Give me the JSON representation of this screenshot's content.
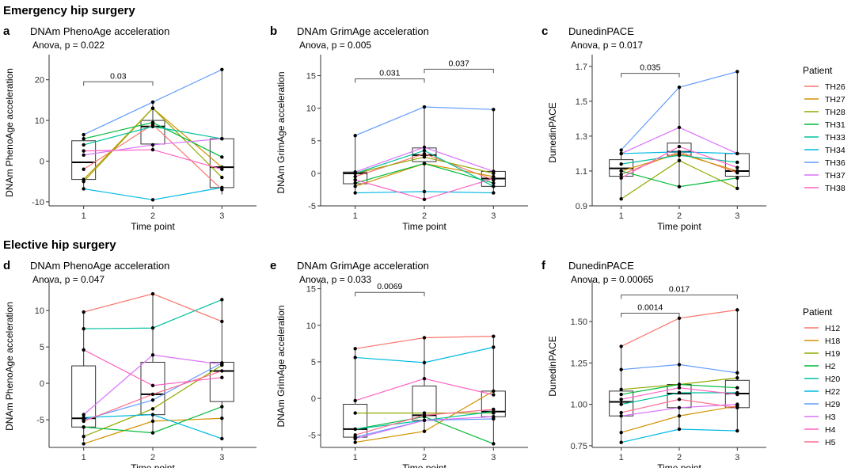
{
  "sections": {
    "emergency": "Emergency hip surgery",
    "elective": "Elective hip surgery"
  },
  "legends": [
    {
      "title": "Patient",
      "entries": [
        {
          "name": "TH26",
          "color": "#F8766D"
        },
        {
          "name": "TH27",
          "color": "#D39200"
        },
        {
          "name": "TH28",
          "color": "#93AA00"
        },
        {
          "name": "TH31",
          "color": "#00BA38"
        },
        {
          "name": "TH33",
          "color": "#00C19F"
        },
        {
          "name": "TH34",
          "color": "#00B9E3"
        },
        {
          "name": "TH36",
          "color": "#619CFF"
        },
        {
          "name": "TH37",
          "color": "#DB72FB"
        },
        {
          "name": "TH38",
          "color": "#FF61C3"
        }
      ]
    },
    {
      "title": "Patient",
      "entries": [
        {
          "name": "H12",
          "color": "#F8766D"
        },
        {
          "name": "H18",
          "color": "#D39200"
        },
        {
          "name": "H19",
          "color": "#93AA00"
        },
        {
          "name": "H2",
          "color": "#00BA38"
        },
        {
          "name": "H20",
          "color": "#00C19F"
        },
        {
          "name": "H22",
          "color": "#00B9E3"
        },
        {
          "name": "H29",
          "color": "#619CFF"
        },
        {
          "name": "H3",
          "color": "#DB72FB"
        },
        {
          "name": "H4",
          "color": "#FF61C3"
        },
        {
          "name": "H5",
          "color": "#FF6C91"
        }
      ]
    }
  ],
  "chart_data": [
    {
      "panel": "a",
      "type": "box",
      "title": "DNAm PhenoAge acceleration",
      "subtitle": "Anova, p = 0.022",
      "xlabel": "Time point",
      "ylabel": "DNAm PhenoAge acceleration",
      "categories": [
        "1",
        "2",
        "3"
      ],
      "ylim": [
        -11,
        25
      ],
      "yticks": [
        -10,
        0,
        10,
        20
      ],
      "ytick_labels": [
        "-10",
        "0",
        "10",
        "20"
      ],
      "boxes": [
        {
          "q1": -4.5,
          "median": -0.3,
          "q3": 5.0,
          "low": -6.8,
          "high": 6.5
        },
        {
          "q1": 4.2,
          "median": 8.5,
          "q3": 10.0,
          "low": 2.8,
          "high": 14.5
        },
        {
          "q1": -6.5,
          "median": -1.5,
          "q3": 5.5,
          "low": -8.2,
          "high": 22.5
        }
      ],
      "brackets": [
        {
          "from": 0,
          "to": 1,
          "y": 19.5,
          "label": "0.03"
        }
      ],
      "legend": 0,
      "series": [
        {
          "name": "TH26",
          "values": [
            -2.0,
            9.0,
            -7.0
          ]
        },
        {
          "name": "TH27",
          "values": [
            -4.5,
            13.0,
            -1.5
          ]
        },
        {
          "name": "TH28",
          "values": [
            -5.0,
            13.0,
            -4.0
          ]
        },
        {
          "name": "TH31",
          "values": [
            5.5,
            9.5,
            1.0
          ]
        },
        {
          "name": "TH33",
          "values": [
            4.0,
            8.5,
            5.5
          ]
        },
        {
          "name": "TH34",
          "values": [
            -6.8,
            -9.5,
            -6.5
          ]
        },
        {
          "name": "TH36",
          "values": [
            6.5,
            14.5,
            22.5
          ]
        },
        {
          "name": "TH37",
          "values": [
            1.5,
            4.0,
            5.5
          ]
        },
        {
          "name": "TH38",
          "values": [
            2.5,
            2.8,
            -2.0
          ]
        }
      ]
    },
    {
      "panel": "b",
      "type": "box",
      "title": "DNAm GrimAge acceleration",
      "subtitle": "Anova, p = 0.005",
      "xlabel": "Time point",
      "ylabel": "DNAm GrimAge acceleration",
      "categories": [
        "1",
        "2",
        "3"
      ],
      "ylim": [
        -5,
        17.5
      ],
      "yticks": [
        -5,
        0,
        5,
        10,
        15
      ],
      "ytick_labels": [
        "-5",
        "0",
        "5",
        "10",
        "15"
      ],
      "boxes": [
        {
          "q1": -1.6,
          "median": 0.0,
          "q3": 0.2,
          "low": -3.0,
          "high": 5.8
        },
        {
          "q1": 1.8,
          "median": 2.8,
          "q3": 3.9,
          "low": -4.0,
          "high": 10.2
        },
        {
          "q1": -2.0,
          "median": -0.8,
          "q3": 0.3,
          "low": -3.0,
          "high": 9.8
        }
      ],
      "brackets": [
        {
          "from": 0,
          "to": 1,
          "y": 14.5,
          "label": "0.031"
        },
        {
          "from": 1,
          "to": 2,
          "y": 16.0,
          "label": "0.037"
        }
      ],
      "legend": 0,
      "series": [
        {
          "name": "TH26",
          "values": [
            -0.5,
            3.0,
            -1.0
          ]
        },
        {
          "name": "TH27",
          "values": [
            -2.0,
            1.5,
            -0.5
          ]
        },
        {
          "name": "TH28",
          "values": [
            0.0,
            2.5,
            0.0
          ]
        },
        {
          "name": "TH31",
          "values": [
            -1.5,
            1.5,
            -1.5
          ]
        },
        {
          "name": "TH33",
          "values": [
            0.0,
            3.5,
            -2.0
          ]
        },
        {
          "name": "TH34",
          "values": [
            -3.0,
            -2.8,
            -3.0
          ]
        },
        {
          "name": "TH36",
          "values": [
            5.8,
            10.2,
            9.8
          ]
        },
        {
          "name": "TH37",
          "values": [
            0.2,
            4.0,
            0.3
          ]
        },
        {
          "name": "TH38",
          "values": [
            -1.0,
            -4.0,
            -0.8
          ]
        }
      ]
    },
    {
      "panel": "c",
      "type": "box",
      "title": "DunedinPACE",
      "subtitle": "Anova, p = 0.017",
      "xlabel": "Time point",
      "ylabel": "DunedinPACE",
      "categories": [
        "1",
        "2",
        "3"
      ],
      "ylim": [
        0.9,
        1.74
      ],
      "yticks": [
        0.9,
        1.1,
        1.3,
        1.5,
        1.7
      ],
      "ytick_labels": [
        "0.9",
        "1.1",
        "1.3",
        "1.5",
        "1.7"
      ],
      "boxes": [
        {
          "q1": 1.07,
          "median": 1.115,
          "q3": 1.165,
          "low": 0.94,
          "high": 1.22
        },
        {
          "q1": 1.19,
          "median": 1.21,
          "q3": 1.26,
          "low": 1.01,
          "high": 1.58
        },
        {
          "q1": 1.07,
          "median": 1.1,
          "q3": 1.2,
          "low": 1.0,
          "high": 1.67
        }
      ],
      "brackets": [
        {
          "from": 0,
          "to": 1,
          "y": 1.66,
          "label": "0.035"
        }
      ],
      "legend": 0,
      "series": [
        {
          "name": "TH26",
          "values": [
            1.08,
            1.21,
            1.09
          ]
        },
        {
          "name": "TH27",
          "values": [
            1.1,
            1.2,
            1.1
          ]
        },
        {
          "name": "TH28",
          "values": [
            0.94,
            1.16,
            1.0
          ]
        },
        {
          "name": "TH31",
          "values": [
            1.1,
            1.01,
            1.06
          ]
        },
        {
          "name": "TH33",
          "values": [
            1.14,
            1.19,
            1.15
          ]
        },
        {
          "name": "TH34",
          "values": [
            1.2,
            1.21,
            1.2
          ]
        },
        {
          "name": "TH36",
          "values": [
            1.22,
            1.58,
            1.67
          ]
        },
        {
          "name": "TH37",
          "values": [
            1.2,
            1.35,
            1.2
          ]
        },
        {
          "name": "TH38",
          "values": [
            1.06,
            1.24,
            1.12
          ]
        }
      ]
    },
    {
      "panel": "d",
      "type": "box",
      "title": "DNAm PhenoAge acceleration",
      "subtitle": "Anova, p = 0.047",
      "xlabel": "Time point",
      "ylabel": "DNAm PhenoAge acceleration",
      "categories": [
        "1",
        "2",
        "3"
      ],
      "ylim": [
        -8.8,
        13.5
      ],
      "yticks": [
        -5,
        0,
        5,
        10
      ],
      "ytick_labels": [
        "-5",
        "0",
        "5",
        "10"
      ],
      "boxes": [
        {
          "q1": -6.0,
          "median": -4.8,
          "q3": 2.4,
          "low": -8.0,
          "high": 9.8
        },
        {
          "q1": -4.3,
          "median": -1.5,
          "q3": 2.9,
          "low": -6.8,
          "high": 12.3
        },
        {
          "q1": -2.5,
          "median": 1.7,
          "q3": 2.9,
          "low": -7.6,
          "high": 11.5
        }
      ],
      "brackets": [],
      "legend": 1,
      "series": [
        {
          "name": "H12",
          "values": [
            9.8,
            12.3,
            8.5
          ]
        },
        {
          "name": "H18",
          "values": [
            -8.3,
            -5.2,
            -4.8
          ]
        },
        {
          "name": "H19",
          "values": [
            -7.3,
            -3.5,
            2.5
          ]
        },
        {
          "name": "H2",
          "values": [
            -6.0,
            -6.8,
            -3.2
          ]
        },
        {
          "name": "H20",
          "values": [
            7.5,
            7.6,
            11.5
          ]
        },
        {
          "name": "H22",
          "values": [
            -4.7,
            -4.3,
            -7.6
          ]
        },
        {
          "name": "H29",
          "values": [
            -5.0,
            -2.3,
            2.8
          ]
        },
        {
          "name": "H3",
          "values": [
            -4.3,
            3.9,
            2.6
          ]
        },
        {
          "name": "H4",
          "values": [
            4.6,
            -0.3,
            0.8
          ]
        },
        {
          "name": "H5",
          "values": [
            -5.2,
            -1.5,
            1.7
          ]
        }
      ]
    },
    {
      "panel": "e",
      "type": "box",
      "title": "DNAm GrimAge acceleration",
      "subtitle": "Anova, p = 0.033",
      "xlabel": "Time point",
      "ylabel": "DNAm GrimAge acceleration",
      "categories": [
        "1",
        "2",
        "3"
      ],
      "ylim": [
        -6.7,
        15.5
      ],
      "yticks": [
        -5,
        0,
        5,
        10,
        15
      ],
      "ytick_labels": [
        "-5",
        "0",
        "5",
        "10",
        "15"
      ],
      "boxes": [
        {
          "q1": -5.3,
          "median": -4.2,
          "q3": -0.8,
          "low": -6.0,
          "high": 6.8
        },
        {
          "q1": -3.0,
          "median": -2.3,
          "q3": 1.7,
          "low": -4.5,
          "high": 8.3
        },
        {
          "q1": -2.5,
          "median": -1.8,
          "q3": 1.0,
          "low": -6.2,
          "high": 8.5
        }
      ],
      "brackets": [
        {
          "from": 0,
          "to": 1,
          "y": 14.5,
          "label": "0.0069"
        }
      ],
      "legend": 1,
      "series": [
        {
          "name": "H12",
          "values": [
            6.8,
            8.3,
            8.5
          ]
        },
        {
          "name": "H18",
          "values": [
            -6.0,
            -4.5,
            1.0
          ]
        },
        {
          "name": "H19",
          "values": [
            -2.0,
            -2.0,
            -2.0
          ]
        },
        {
          "name": "H2",
          "values": [
            -4.2,
            -2.5,
            -6.2
          ]
        },
        {
          "name": "H20",
          "values": [
            -4.2,
            -3.0,
            -1.8
          ]
        },
        {
          "name": "H22",
          "values": [
            5.6,
            4.9,
            7.0
          ]
        },
        {
          "name": "H29",
          "values": [
            -5.3,
            -3.0,
            -2.8
          ]
        },
        {
          "name": "H3",
          "values": [
            -5.5,
            -3.0,
            -2.5
          ]
        },
        {
          "name": "H4",
          "values": [
            -0.3,
            2.7,
            0.5
          ]
        },
        {
          "name": "H5",
          "values": [
            -5.0,
            -2.3,
            -1.5
          ]
        }
      ]
    },
    {
      "panel": "f",
      "type": "box",
      "title": "DunedinPACE",
      "subtitle": "Anova, p = 0.00065",
      "xlabel": "Time point",
      "ylabel": "DunedinPACE",
      "categories": [
        "1",
        "2",
        "3"
      ],
      "ylim": [
        0.74,
        1.72
      ],
      "yticks": [
        0.75,
        1.0,
        1.25,
        1.5
      ],
      "ytick_labels": [
        "0.75",
        "1.00",
        "1.25",
        "1.50"
      ],
      "boxes": [
        {
          "q1": 0.93,
          "median": 1.015,
          "q3": 1.08,
          "low": 0.77,
          "high": 1.35
        },
        {
          "q1": 0.98,
          "median": 1.065,
          "q3": 1.12,
          "low": 0.85,
          "high": 1.52
        },
        {
          "q1": 0.98,
          "median": 1.065,
          "q3": 1.145,
          "low": 0.84,
          "high": 1.57
        }
      ],
      "brackets": [
        {
          "from": 0,
          "to": 1,
          "y": 1.55,
          "label": "0.0014"
        },
        {
          "from": 0,
          "to": 2,
          "y": 1.66,
          "label": "0.017"
        }
      ],
      "legend": 1,
      "series": [
        {
          "name": "H12",
          "values": [
            1.35,
            1.52,
            1.57
          ]
        },
        {
          "name": "H18",
          "values": [
            0.83,
            0.93,
            0.99
          ]
        },
        {
          "name": "H19",
          "values": [
            1.09,
            1.12,
            1.16
          ]
        },
        {
          "name": "H2",
          "values": [
            1.06,
            1.12,
            1.1
          ]
        },
        {
          "name": "H20",
          "values": [
            1.0,
            1.07,
            1.07
          ]
        },
        {
          "name": "H22",
          "values": [
            0.77,
            0.85,
            0.84
          ]
        },
        {
          "name": "H29",
          "values": [
            1.21,
            1.24,
            1.19
          ]
        },
        {
          "name": "H3",
          "values": [
            0.93,
            0.98,
            1.0
          ]
        },
        {
          "name": "H4",
          "values": [
            1.03,
            1.1,
            1.06
          ]
        },
        {
          "name": "H5",
          "values": [
            0.95,
            1.03,
            0.98
          ]
        }
      ]
    }
  ]
}
